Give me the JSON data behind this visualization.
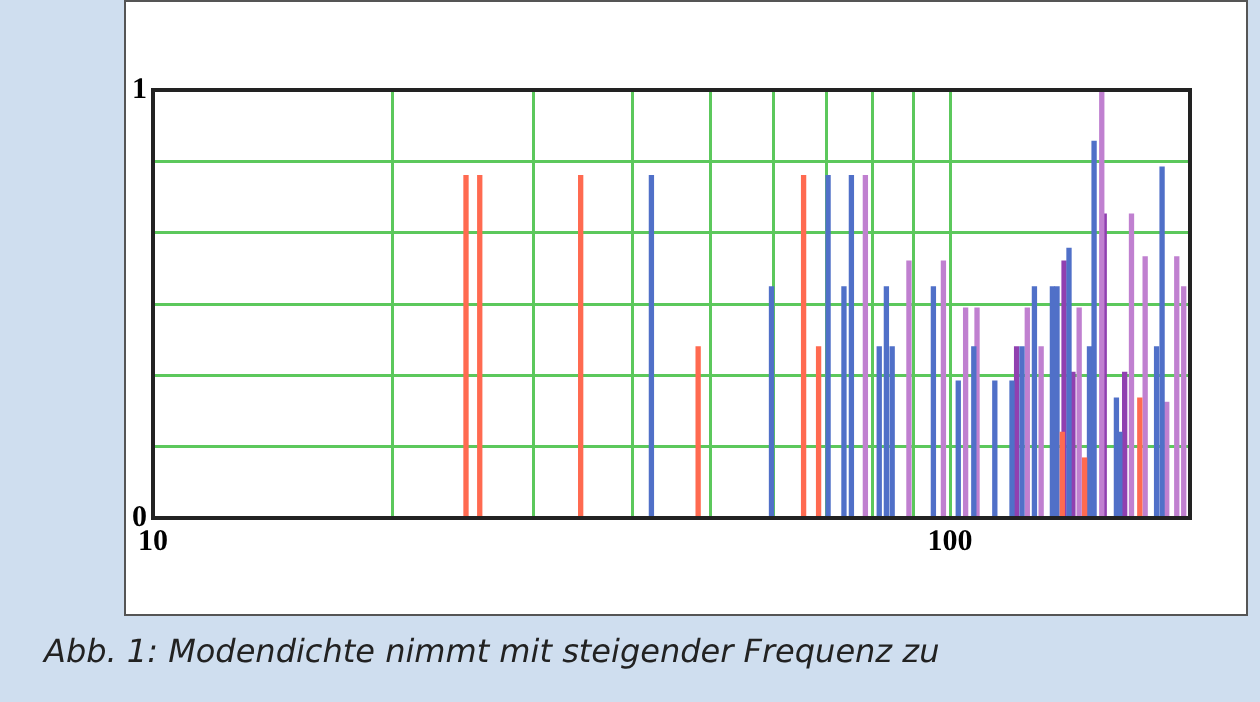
{
  "chart_data": {
    "type": "bar",
    "annotations": [
      "Abb. 1: Modendichte nimmt mit steigender Frequenz zu"
    ],
    "log": "x",
    "grid": true,
    "legend": false,
    "xlim": [
      10,
      200
    ],
    "xticks": [
      10,
      {
        "value": 20,
        "label": null
      },
      {
        "value": 30,
        "label": null
      },
      {
        "value": 40,
        "label": null
      },
      {
        "value": 50,
        "label": null
      },
      {
        "value": 60,
        "label": null
      },
      {
        "value": 70,
        "label": null
      },
      {
        "value": 80,
        "label": null
      },
      {
        "value": 90,
        "label": null
      },
      100
    ],
    "ylim": [
      0,
      1
    ],
    "yticks": [
      0,
      {
        "value": 0.167,
        "label": null
      },
      {
        "value": 0.333,
        "label": null
      },
      {
        "value": 0.5,
        "label": null
      },
      {
        "value": 0.667,
        "label": null
      },
      {
        "value": 0.833,
        "label": null
      },
      1
    ],
    "series": [
      {
        "color": "#ff6a50",
        "x": [
          24.7,
          25.7,
          34.4,
          48.3,
          65.5,
          68.4,
          138.3,
          147.5,
          173
        ],
        "values": [
          0.8,
          0.8,
          0.8,
          0.4,
          0.8,
          0.4,
          0.2,
          0.14,
          0.28
        ]
      },
      {
        "color": "#5070c8",
        "x": [
          42.2,
          59.7,
          70.3,
          73.6,
          75.2,
          81.5,
          83.2,
          84.6,
          95.3,
          102.4,
          107.1,
          113.8,
          119.6,
          123.1,
          127.6,
          134.4,
          136.2,
          141,
          149.6,
          151.6,
          161.7,
          163.3,
          181.6,
          184.5
        ],
        "values": [
          0.8,
          0.54,
          0.8,
          0.54,
          0.8,
          0.4,
          0.54,
          0.4,
          0.54,
          0.32,
          0.4,
          0.32,
          0.32,
          0.4,
          0.54,
          0.54,
          0.54,
          0.63,
          0.4,
          0.88,
          0.28,
          0.2,
          0.4,
          0.82
        ]
      },
      {
        "color": "#c080d0",
        "x": [
          78.3,
          88.8,
          98.1,
          104.6,
          108.1,
          125,
          130.1,
          145.2,
          155,
          168.9,
          175.7,
          187,
          192.5,
          196.4
        ],
        "values": [
          0.8,
          0.6,
          0.6,
          0.49,
          0.49,
          0.49,
          0.4,
          0.49,
          1,
          0.71,
          0.61,
          0.27,
          0.61,
          0.54
        ]
      },
      {
        "color": "#9040b0",
        "x": [
          121.2,
          139,
          142.6,
          156.1,
          165.6
        ],
        "values": [
          0.4,
          0.6,
          0.34,
          0.71,
          0.34
        ]
      }
    ]
  }
}
